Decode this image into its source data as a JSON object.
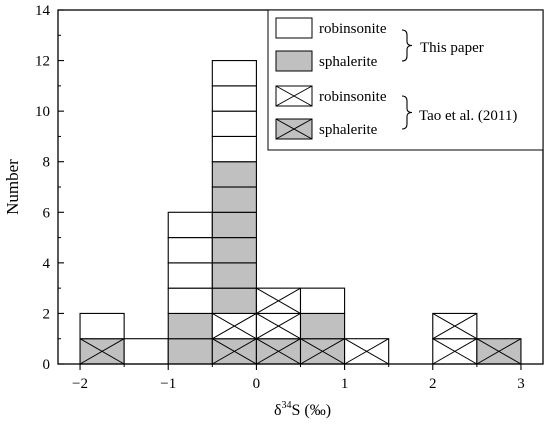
{
  "chart_data": {
    "type": "bar",
    "stacked": true,
    "xlabel_main": "δ",
    "xlabel_sup": "34",
    "xlabel_rest": "S (‰)",
    "ylabel": "Number",
    "xlim": [
      -2.25,
      3.25
    ],
    "ylim": [
      0,
      14
    ],
    "bin_width": 0.5,
    "xticks": [
      {
        "value": -2,
        "label": "−2"
      },
      {
        "value": -1,
        "label": "−1"
      },
      {
        "value": 0,
        "label": "0"
      },
      {
        "value": 1,
        "label": "1"
      },
      {
        "value": 2,
        "label": "2"
      },
      {
        "value": 3,
        "label": "3"
      }
    ],
    "yticks": [
      {
        "value": 0,
        "label": "0"
      },
      {
        "value": 2,
        "label": "2"
      },
      {
        "value": 4,
        "label": "4"
      },
      {
        "value": 6,
        "label": "6"
      },
      {
        "value": 8,
        "label": "8"
      },
      {
        "value": 10,
        "label": "10"
      },
      {
        "value": 12,
        "label": "12"
      },
      {
        "value": 14,
        "label": "14"
      }
    ],
    "bins": [
      {
        "start": -2.0,
        "counts": [
          1,
          0,
          0,
          1
        ]
      },
      {
        "start": -1.5,
        "counts": [
          1,
          0,
          0,
          0
        ]
      },
      {
        "start": -1.0,
        "counts": [
          4,
          2,
          0,
          0
        ]
      },
      {
        "start": -0.5,
        "counts": [
          4,
          6,
          1,
          1
        ]
      },
      {
        "start": 0.0,
        "counts": [
          0,
          0,
          2,
          1
        ]
      },
      {
        "start": 0.5,
        "counts": [
          1,
          1,
          0,
          1
        ]
      },
      {
        "start": 1.0,
        "counts": [
          0,
          0,
          1,
          0
        ]
      },
      {
        "start": 2.0,
        "counts": [
          0,
          0,
          2,
          0
        ]
      },
      {
        "start": 2.5,
        "counts": [
          0,
          0,
          0,
          1
        ]
      }
    ],
    "series": [
      {
        "name": "robinsonite",
        "source": "This paper",
        "style": "white"
      },
      {
        "name": "sphalerite",
        "source": "This paper",
        "style": "gray"
      },
      {
        "name": "robinsonite",
        "source": "Tao et al. (2011)",
        "style": "white-cross"
      },
      {
        "name": "sphalerite",
        "source": "Tao et al. (2011)",
        "style": "gray-cross"
      }
    ],
    "stack_order": [
      3,
      2,
      1,
      0
    ],
    "colors": {
      "gray": "#c0c0c0",
      "white": "#ffffff",
      "line": "#000000"
    },
    "legend": {
      "placement": "top-right",
      "group_labels": [
        "This paper",
        "Tao et al. (2011)"
      ]
    }
  }
}
